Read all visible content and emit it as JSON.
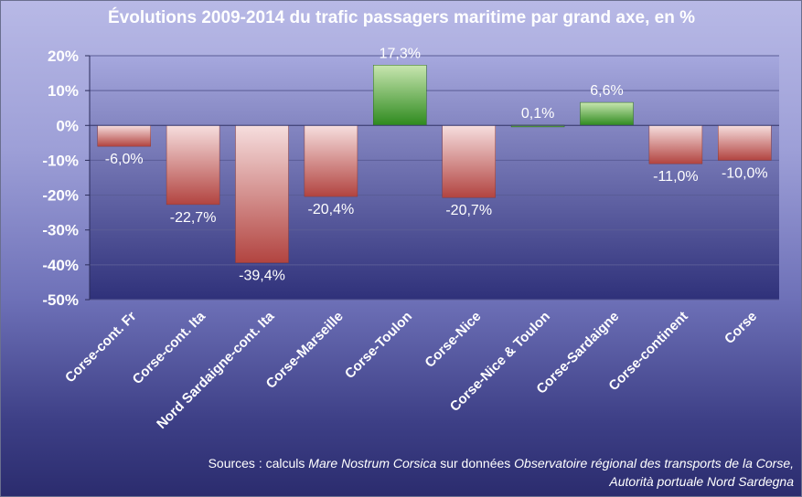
{
  "chart_data": {
    "type": "bar",
    "title": "Évolutions 2009-2014 du trafic passagers maritime par grand axe, en %",
    "categories": [
      "Corse-cont. Fr",
      "Corse-cont. Ita",
      "Nord Sardaigne-cont. Ita",
      "Corse-Marseille",
      "Corse-Toulon",
      "Corse-Nice",
      "Corse-Nice & Toulon",
      "Corse-Sardaigne",
      "Corse-continent",
      "Corse"
    ],
    "values": [
      -6.0,
      -22.7,
      -39.4,
      -20.4,
      17.3,
      -20.7,
      0.1,
      6.6,
      -11.0,
      -10.0
    ],
    "data_labels": [
      "-6,0%",
      "-22,7%",
      "-39,4%",
      "-20,4%",
      "17,3%",
      "-20,7%",
      "0,1%",
      "6,6%",
      "-11,0%",
      "-10,0%"
    ],
    "ylim": [
      -50,
      20
    ],
    "yticks": [
      20,
      10,
      0,
      -10,
      -20,
      -30,
      -40,
      -50
    ],
    "ytick_labels": [
      "20%",
      "10%",
      "0%",
      "-10%",
      "-20%",
      "-30%",
      "-40%",
      "-50%"
    ],
    "xlabel": "",
    "ylabel": "",
    "grid": true,
    "legend": "none",
    "colors": {
      "positive_top": "#c8e6b0",
      "positive_bottom": "#2e8a1e",
      "negative_top": "#f6dede",
      "negative_bottom": "#b24440",
      "plot_top": "#a6a8de",
      "plot_bottom": "#2f317a"
    }
  },
  "source": {
    "prefix": "Sources : calculs ",
    "italic1": "Mare Nostrum Corsica",
    "middle": " sur données ",
    "italic2": "Observatoire régional des transports de la Corse,",
    "line2": "Autorità portuale Nord Sardegna"
  }
}
